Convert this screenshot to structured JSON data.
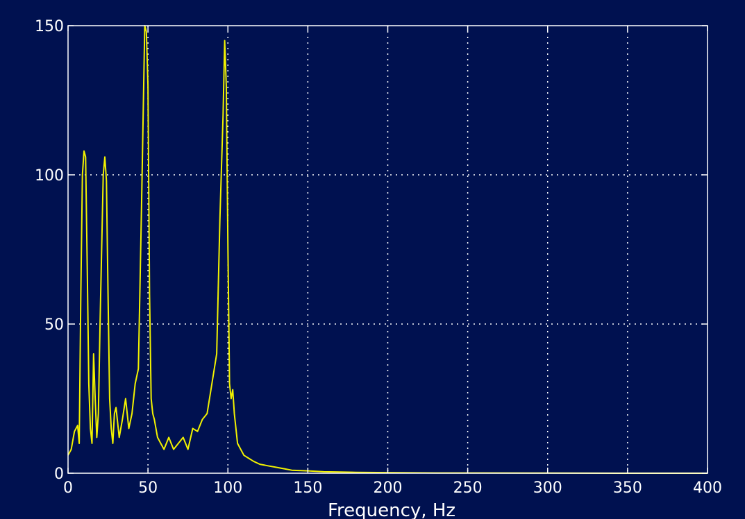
{
  "colors": {
    "background": "#001150",
    "axes": "#ffffff",
    "grid": "#ffffff",
    "series": "#f2f200"
  },
  "chart_data": {
    "type": "line",
    "title": "",
    "xlabel": "Frequency, Hz",
    "ylabel": "",
    "xlim": [
      0,
      400
    ],
    "ylim": [
      0,
      150
    ],
    "xticks": [
      0,
      50,
      100,
      150,
      200,
      250,
      300,
      350,
      400
    ],
    "yticks": [
      0,
      50,
      100,
      150
    ],
    "grid": true,
    "legend": "none",
    "series": [
      {
        "name": "",
        "x": [
          0,
          2,
          4,
          6,
          7,
          8,
          9,
          10,
          11,
          12,
          13,
          14,
          15,
          16,
          17,
          18,
          19,
          20,
          21,
          22,
          23,
          24,
          25,
          26,
          27,
          28,
          29,
          30,
          32,
          34,
          36,
          38,
          40,
          42,
          44,
          46,
          47,
          48,
          49,
          50,
          51,
          52,
          53,
          54,
          55,
          56,
          58,
          60,
          63,
          66,
          69,
          72,
          75,
          78,
          81,
          84,
          87,
          90,
          93,
          95,
          97,
          98,
          99,
          100,
          101,
          102,
          103,
          104,
          105,
          106,
          108,
          110,
          113,
          116,
          120,
          125,
          130,
          135,
          140,
          150,
          160,
          170,
          180,
          200,
          230,
          260,
          300,
          350,
          400
        ],
        "y": [
          6,
          8,
          14,
          16,
          10,
          60,
          100,
          108,
          106,
          70,
          30,
          15,
          10,
          40,
          25,
          12,
          20,
          50,
          75,
          100,
          106,
          98,
          60,
          25,
          15,
          10,
          20,
          22,
          12,
          18,
          25,
          15,
          20,
          30,
          35,
          90,
          120,
          150,
          148,
          130,
          60,
          25,
          20,
          18,
          15,
          12,
          10,
          8,
          12,
          8,
          10,
          12,
          8,
          15,
          14,
          18,
          20,
          30,
          40,
          85,
          120,
          145,
          130,
          75,
          30,
          25,
          28,
          20,
          15,
          10,
          8,
          6,
          5,
          4,
          3,
          2.5,
          2,
          1.5,
          1,
          0.8,
          0.5,
          0.4,
          0.3,
          0.2,
          0.1,
          0.1,
          0.05,
          0,
          0
        ]
      }
    ]
  }
}
